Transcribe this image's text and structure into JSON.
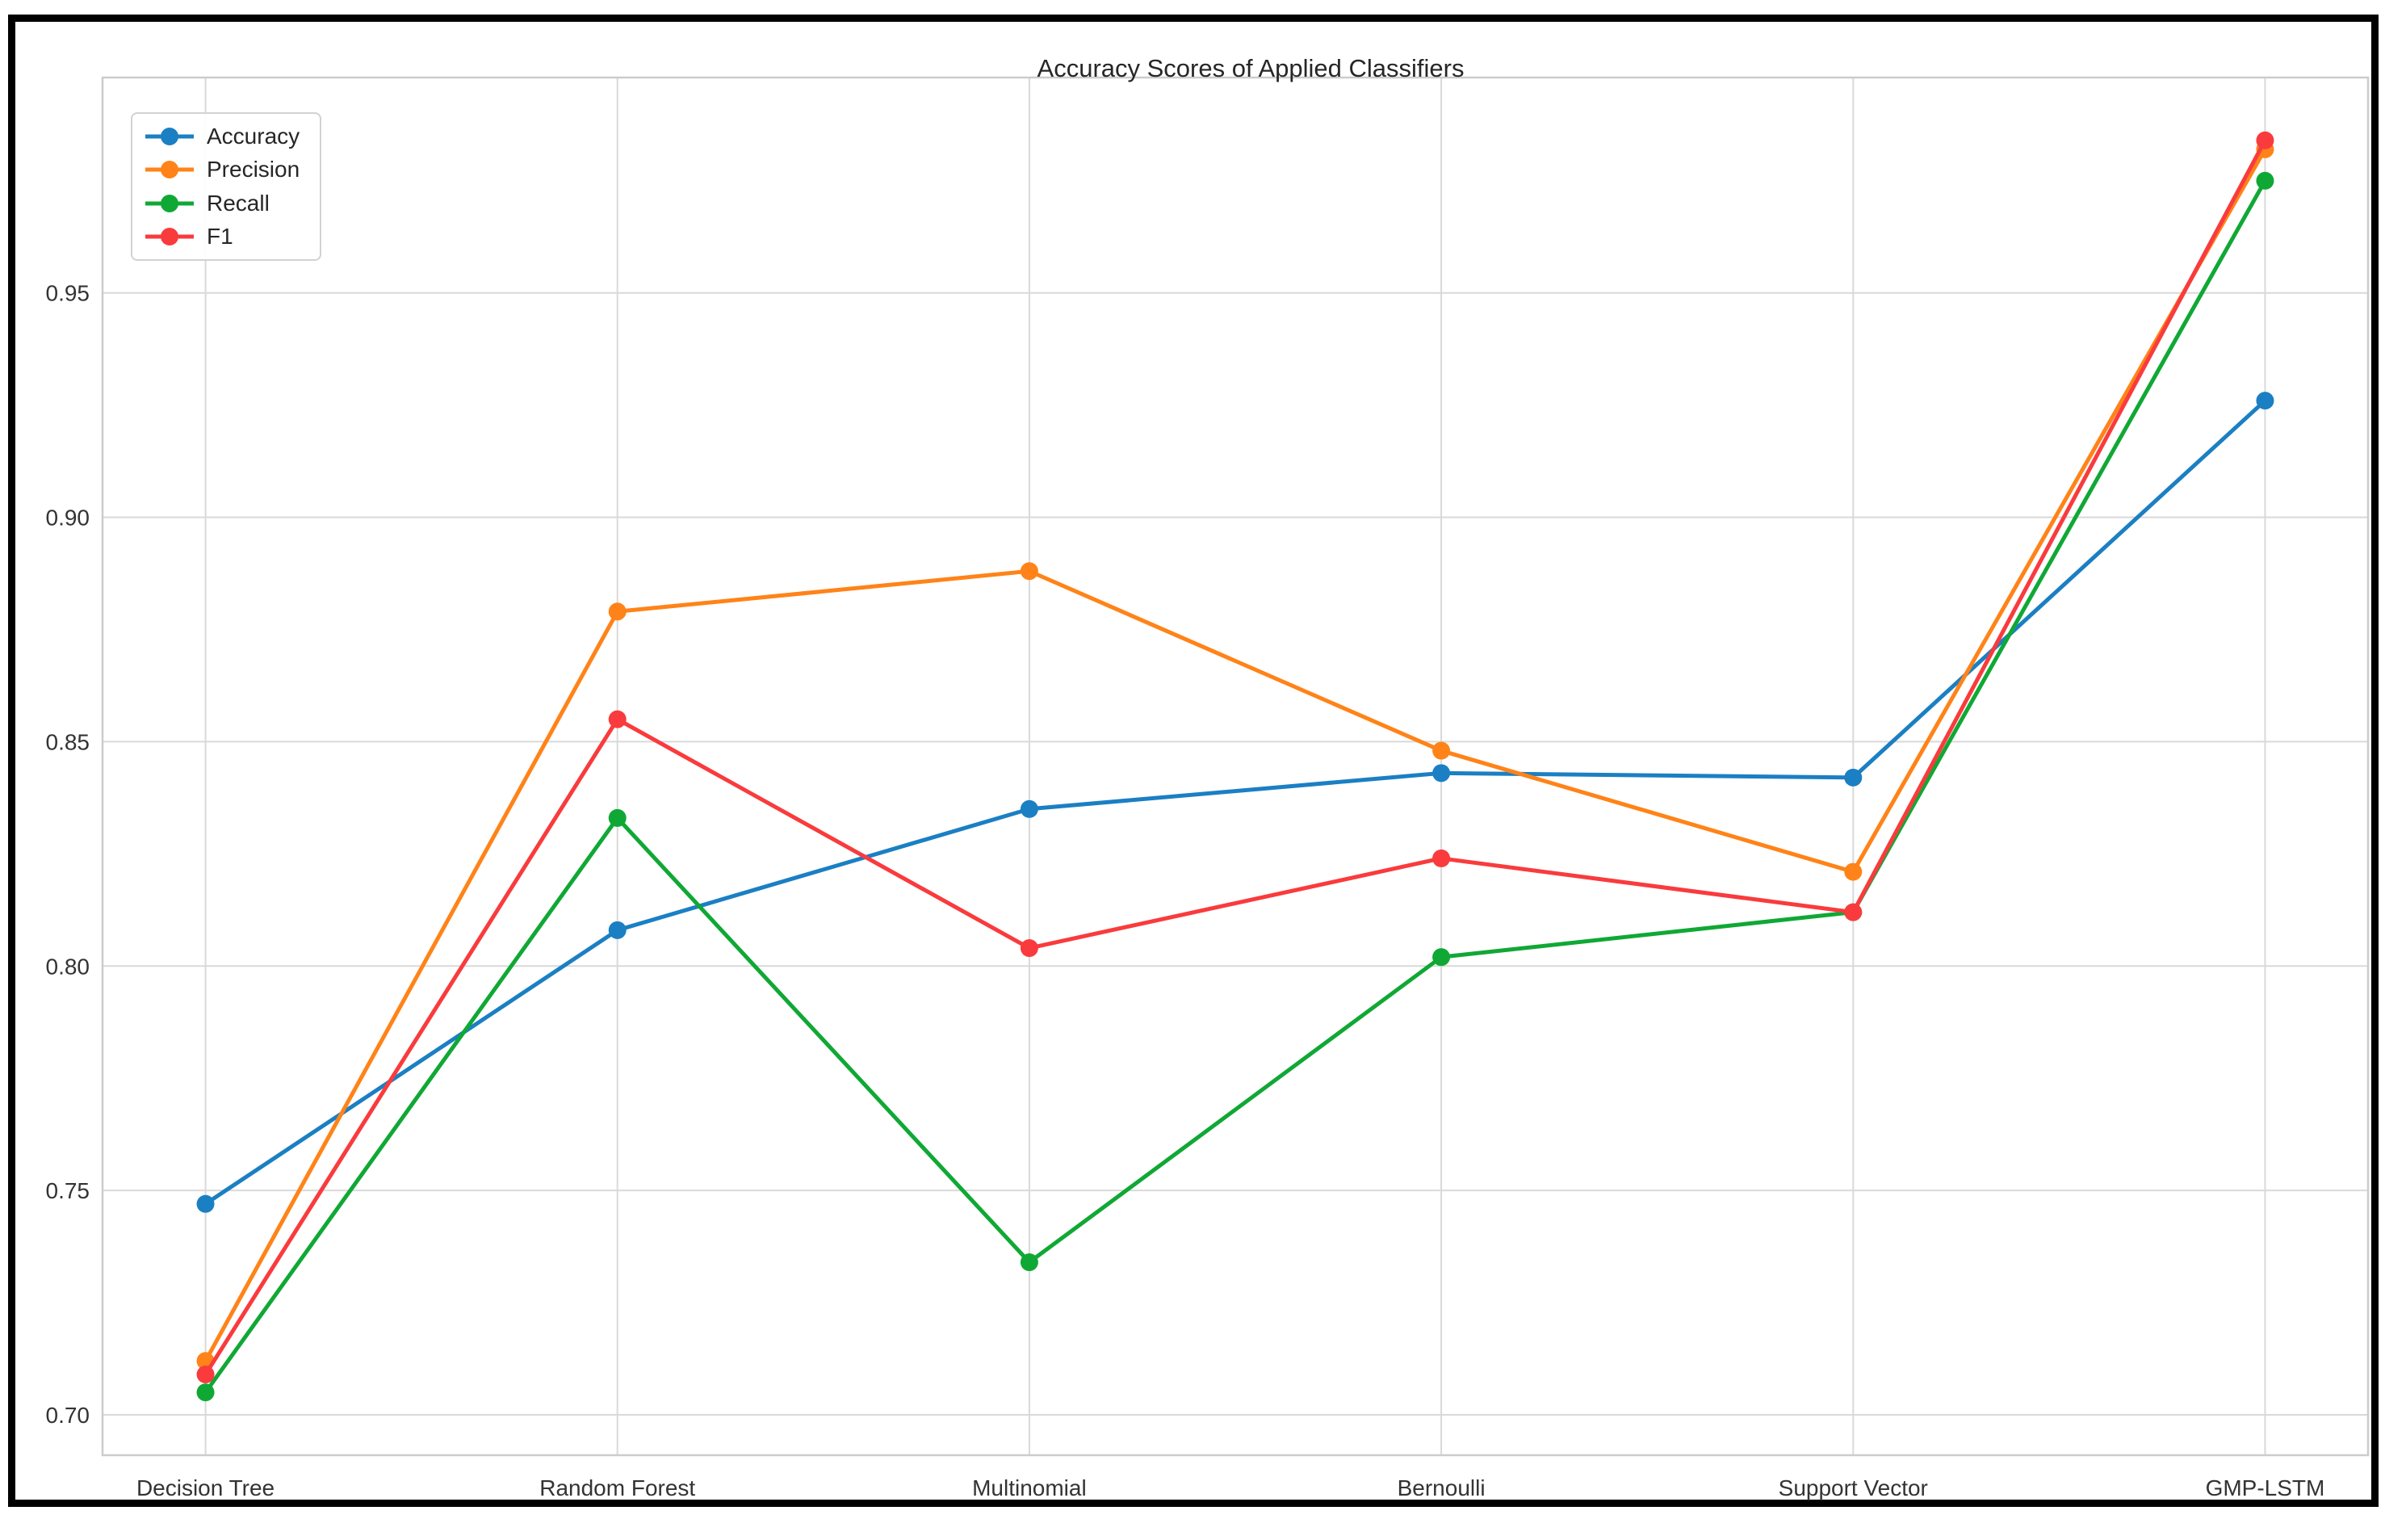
{
  "chart_data": {
    "type": "line",
    "title": "Accuracy Scores of Applied Classifiers",
    "categories": [
      "Decision Tree",
      "Random Forest",
      "Multinomial",
      "Bernoulli",
      "Support Vector",
      "GMP-LSTM"
    ],
    "series": [
      {
        "name": "Accuracy",
        "color": "#1b7fc3",
        "values": [
          0.747,
          0.808,
          0.835,
          0.843,
          0.842,
          0.926
        ]
      },
      {
        "name": "Precision",
        "color": "#ff8318",
        "values": [
          0.712,
          0.879,
          0.888,
          0.848,
          0.821,
          0.982
        ]
      },
      {
        "name": "Recall",
        "color": "#10a835",
        "values": [
          0.705,
          0.833,
          0.734,
          0.802,
          0.812,
          0.975
        ]
      },
      {
        "name": "F1",
        "color": "#f93b3d",
        "values": [
          0.709,
          0.855,
          0.804,
          0.824,
          0.812,
          0.984
        ]
      }
    ],
    "yticks": [
      "0.70",
      "0.75",
      "0.80",
      "0.85",
      "0.90",
      "0.95"
    ],
    "ylim": [
      0.691,
      0.998
    ],
    "xlabel": "",
    "ylabel": "",
    "grid": true,
    "legend_position": "upper left",
    "marker": "circle"
  },
  "colors": {
    "grid": "#d9d9d9",
    "spine": "#cccccc",
    "tick_text": "#333333",
    "title_text": "#262626",
    "frame": "#000000",
    "background": "#ffffff"
  }
}
